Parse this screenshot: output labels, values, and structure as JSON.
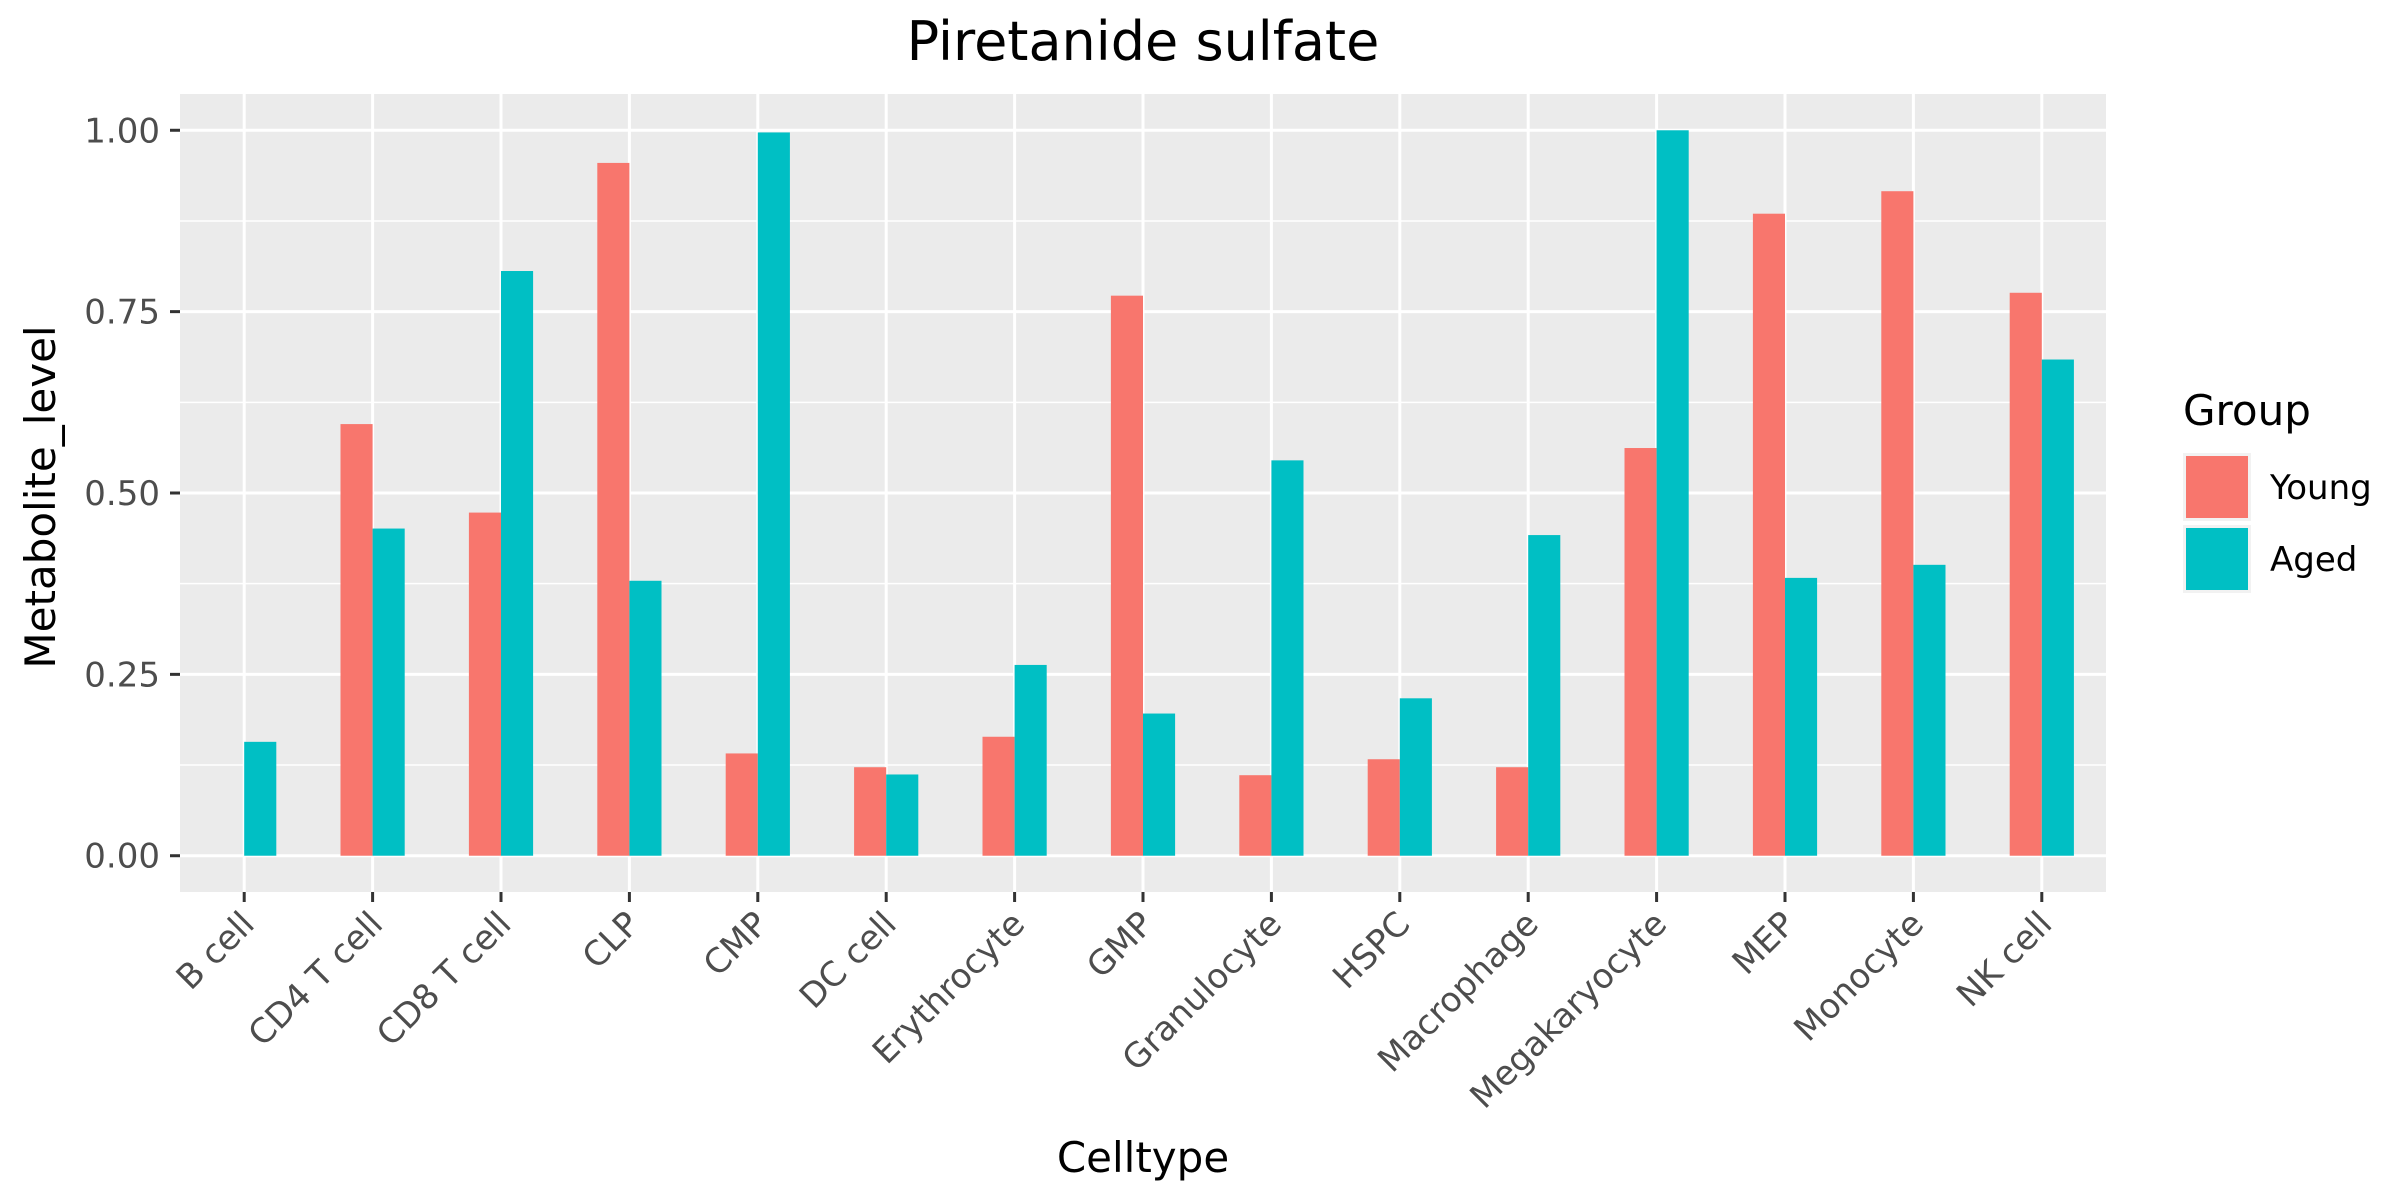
{
  "chart_data": {
    "type": "bar",
    "title": "Piretanide sulfate",
    "xlabel": "Celltype",
    "ylabel": "Metabolite_level",
    "ylim": [
      -0.05,
      1.05
    ],
    "yticks": [
      0,
      0.25,
      0.5,
      0.75,
      1.0
    ],
    "ytick_labels": [
      "0.00",
      "0.25",
      "0.50",
      "0.75",
      "1.00"
    ],
    "categories": [
      "B cell",
      "CD4 T cell",
      "CD8 T cell",
      "CLP",
      "CMP",
      "DC cell",
      "Erythrocyte",
      "GMP",
      "Granulocyte",
      "HSPC",
      "Macrophage",
      "Megakaryocyte",
      "MEP",
      "Monocyte",
      "NK cell"
    ],
    "series": [
      {
        "name": "Young",
        "color": "#F8766D",
        "values": [
          0.0,
          0.595,
          0.473,
          0.955,
          0.141,
          0.122,
          0.164,
          0.772,
          0.111,
          0.133,
          0.122,
          0.562,
          0.885,
          0.916,
          0.776
        ]
      },
      {
        "name": "Aged",
        "color": "#00BFC4",
        "values": [
          0.157,
          0.451,
          0.806,
          0.379,
          0.997,
          0.112,
          0.263,
          0.196,
          0.545,
          0.217,
          0.442,
          1.0,
          0.383,
          0.401,
          0.684
        ]
      }
    ],
    "legend": {
      "title": "Group",
      "position": "right"
    },
    "grid": true,
    "panel_background": "#EBEBEB",
    "grid_color": "#FFFFFF"
  }
}
